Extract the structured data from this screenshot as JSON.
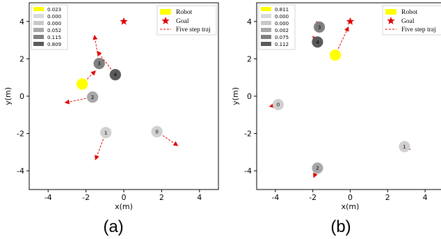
{
  "chart_data": [
    {
      "type": "scatter",
      "panel_label": "(a)",
      "xlabel": "x(m)",
      "ylabel": "y(m)",
      "xlim": [
        -5,
        5
      ],
      "ylim": [
        -5,
        5
      ],
      "xticks": [
        -4,
        -2,
        0,
        2,
        4
      ],
      "yticks": [
        -4,
        -2,
        0,
        2,
        4
      ],
      "legend_entries": [
        "Robot",
        "Goal",
        "Five step traj"
      ],
      "attention_weights": [
        "0.023",
        "0.000",
        "0.000",
        "0.052",
        "0.115",
        "0.809"
      ],
      "attention_colors": [
        "#ffff00",
        "#d9d9d9",
        "#c8c8c8",
        "#a8a8a8",
        "#808080",
        "#5a5a5a"
      ],
      "goal": {
        "x": 0,
        "y": 4
      },
      "robot": {
        "x": -2.2,
        "y": 0.65,
        "label": "",
        "traj_end": {
          "x": -1.5,
          "y": 1.35
        }
      },
      "humans": [
        {
          "id": "0",
          "x": 1.75,
          "y": -1.9,
          "color": "#d0d0d0",
          "traj_end": {
            "x": 2.85,
            "y": -2.65
          }
        },
        {
          "id": "1",
          "x": -0.95,
          "y": -1.95,
          "color": "#d0d0d0",
          "traj_end": {
            "x": -1.5,
            "y": -3.4
          }
        },
        {
          "id": "2",
          "x": -1.65,
          "y": -0.05,
          "color": "#a8a8a8",
          "traj_end": {
            "x": -3.1,
            "y": -0.35
          }
        },
        {
          "id": "3",
          "x": -1.3,
          "y": 1.75,
          "color": "#808080",
          "traj_end": {
            "x": -1.55,
            "y": 3.25
          }
        },
        {
          "id": "4",
          "x": -0.45,
          "y": 1.15,
          "color": "#5a5a5a",
          "traj_end": {
            "x": -1.4,
            "y": 2.4
          }
        }
      ]
    },
    {
      "type": "scatter",
      "panel_label": "(b)",
      "xlabel": "x(m)",
      "ylabel": "y(m)",
      "xlim": [
        -5,
        5
      ],
      "ylim": [
        -5,
        5
      ],
      "xticks": [
        -4,
        -2,
        0,
        2,
        4
      ],
      "yticks": [
        -4,
        -2,
        0,
        2,
        4
      ],
      "legend_entries": [
        "Robot",
        "Goal",
        "Five step traj"
      ],
      "attention_weights": [
        "0.811",
        "0.000",
        "0.000",
        "0.002",
        "0.075",
        "0.112"
      ],
      "attention_colors": [
        "#ffff00",
        "#d9d9d9",
        "#c8c8c8",
        "#a8a8a8",
        "#808080",
        "#5a5a5a"
      ],
      "goal": {
        "x": 0,
        "y": 4
      },
      "robot": {
        "x": -0.8,
        "y": 2.2,
        "label": "",
        "traj_end": {
          "x": -0.1,
          "y": 3.7
        }
      },
      "humans": [
        {
          "id": "0",
          "x": -3.85,
          "y": -0.45,
          "color": "#d0d0d0",
          "traj_end": {
            "x": -4.3,
            "y": -0.55
          }
        },
        {
          "id": "1",
          "x": 2.9,
          "y": -2.7,
          "color": "#d0d0d0",
          "traj_end": {
            "x": 3.2,
            "y": -2.85
          }
        },
        {
          "id": "2",
          "x": -1.75,
          "y": -3.85,
          "color": "#a8a8a8",
          "traj_end": {
            "x": -1.95,
            "y": -4.35
          }
        },
        {
          "id": "3",
          "x": -1.65,
          "y": 3.7,
          "color": "#808080",
          "traj_end": {
            "x": -1.8,
            "y": 4.0
          }
        },
        {
          "id": "4",
          "x": -1.75,
          "y": 2.9,
          "color": "#5a5a5a",
          "traj_end": {
            "x": -2.0,
            "y": 3.2
          }
        }
      ]
    }
  ]
}
